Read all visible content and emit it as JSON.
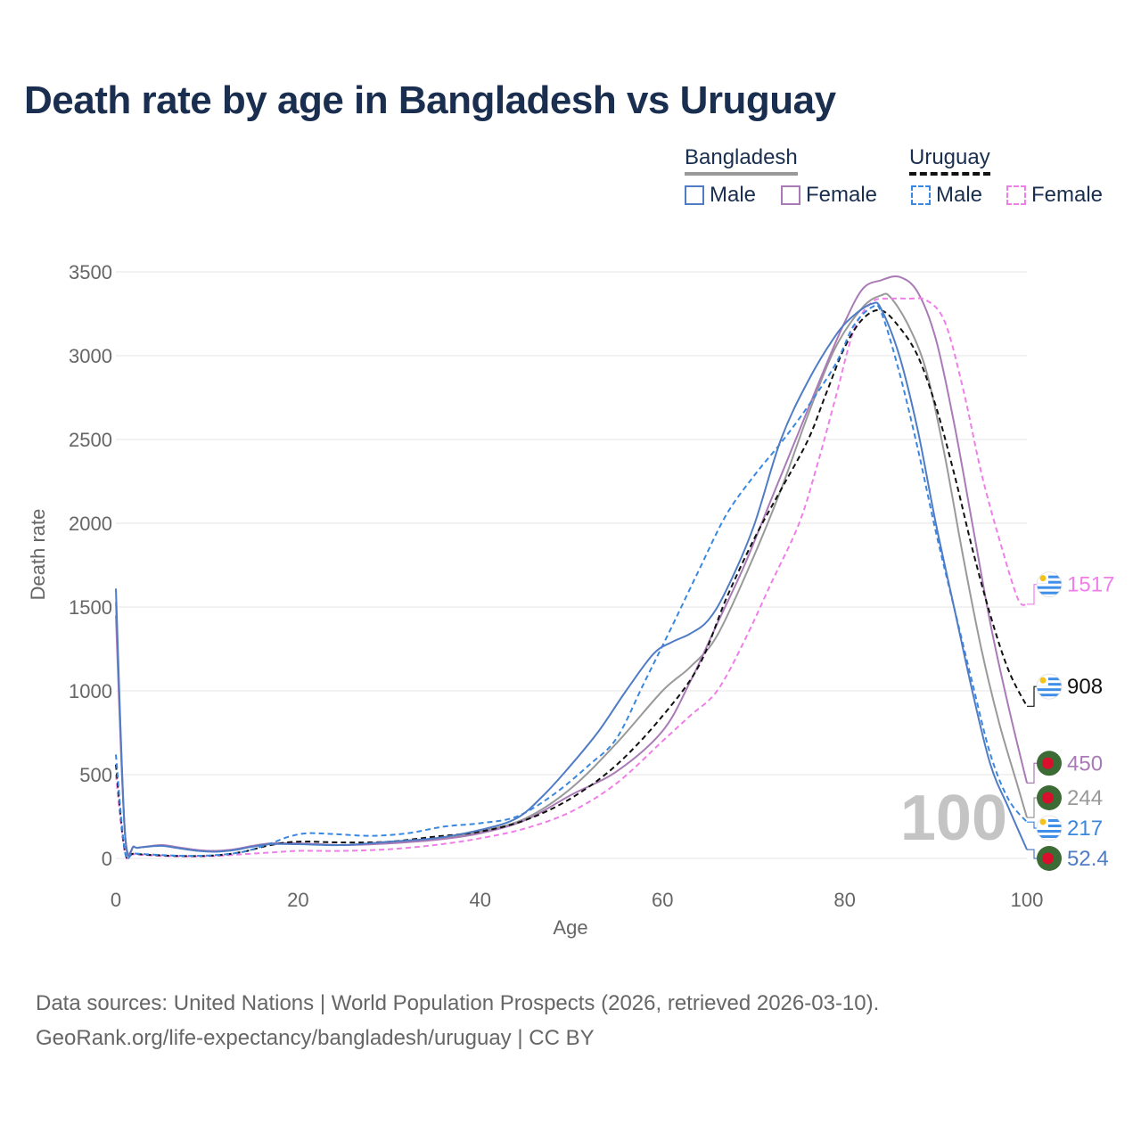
{
  "title": "Death rate by age in Bangladesh vs Uruguay",
  "legend": {
    "groups": [
      {
        "name": "Bangladesh",
        "line_color": "#999999",
        "line_style": "solid"
      },
      {
        "name": "Uruguay",
        "line_color": "#111111",
        "line_style": "dashed"
      }
    ],
    "items": [
      {
        "label": "Male",
        "color": "#4f7cc4",
        "style": "solid"
      },
      {
        "label": "Female",
        "color": "#a97ab6",
        "style": "solid"
      },
      {
        "label": "Male",
        "color": "#3a87e0",
        "style": "dashed"
      },
      {
        "label": "Female",
        "color": "#f07ee8",
        "style": "dashed"
      }
    ]
  },
  "chart_data": {
    "type": "line",
    "title": "Death rate by age in Bangladesh vs Uruguay",
    "xlabel": "Age",
    "ylabel": "Death rate",
    "xlim": [
      0,
      100
    ],
    "ylim": [
      0,
      3500
    ],
    "xticks": [
      0,
      20,
      40,
      60,
      80,
      100
    ],
    "yticks": [
      0,
      500,
      1000,
      1500,
      2000,
      2500,
      3000,
      3500
    ],
    "grid": true,
    "age_watermark": "100",
    "series": [
      {
        "name": "Bangladesh Male",
        "country": "Bangladesh",
        "color": "#4f7cc4",
        "dash": "solid",
        "points": [
          [
            0,
            1610
          ],
          [
            1,
            150
          ],
          [
            2,
            70
          ],
          [
            3,
            68
          ],
          [
            5,
            75
          ],
          [
            7,
            60
          ],
          [
            9,
            45
          ],
          [
            11,
            40
          ],
          [
            13,
            50
          ],
          [
            15,
            70
          ],
          [
            17,
            85
          ],
          [
            20,
            85
          ],
          [
            25,
            80
          ],
          [
            30,
            100
          ],
          [
            35,
            120
          ],
          [
            40,
            170
          ],
          [
            44,
            240
          ],
          [
            47,
            380
          ],
          [
            50,
            560
          ],
          [
            53,
            760
          ],
          [
            56,
            1000
          ],
          [
            59,
            1220
          ],
          [
            61,
            1290
          ],
          [
            63,
            1340
          ],
          [
            65,
            1420
          ],
          [
            67,
            1600
          ],
          [
            70,
            1980
          ],
          [
            73,
            2500
          ],
          [
            76,
            2850
          ],
          [
            79,
            3120
          ],
          [
            81,
            3240
          ],
          [
            83,
            3310
          ],
          [
            84,
            3280
          ],
          [
            86,
            3000
          ],
          [
            88,
            2560
          ],
          [
            90,
            2000
          ],
          [
            92,
            1500
          ],
          [
            94,
            1000
          ],
          [
            96,
            560
          ],
          [
            98,
            300
          ],
          [
            100,
            52.4
          ]
        ],
        "end_label": "52.4"
      },
      {
        "name": "Bangladesh Female",
        "country": "Bangladesh",
        "color": "#a97ab6",
        "dash": "solid",
        "points": [
          [
            0,
            1450
          ],
          [
            1,
            150
          ],
          [
            2,
            70
          ],
          [
            3,
            68
          ],
          [
            5,
            80
          ],
          [
            7,
            65
          ],
          [
            9,
            50
          ],
          [
            11,
            45
          ],
          [
            13,
            55
          ],
          [
            15,
            75
          ],
          [
            17,
            90
          ],
          [
            20,
            90
          ],
          [
            25,
            80
          ],
          [
            30,
            90
          ],
          [
            35,
            110
          ],
          [
            40,
            150
          ],
          [
            45,
            230
          ],
          [
            50,
            380
          ],
          [
            55,
            520
          ],
          [
            60,
            760
          ],
          [
            63,
            1050
          ],
          [
            66,
            1400
          ],
          [
            69,
            1750
          ],
          [
            72,
            2150
          ],
          [
            75,
            2550
          ],
          [
            78,
            2950
          ],
          [
            80,
            3200
          ],
          [
            82,
            3400
          ],
          [
            84,
            3450
          ],
          [
            86,
            3470
          ],
          [
            88,
            3380
          ],
          [
            90,
            3100
          ],
          [
            92,
            2600
          ],
          [
            94,
            2000
          ],
          [
            96,
            1400
          ],
          [
            98,
            900
          ],
          [
            100,
            450
          ]
        ],
        "end_label": "450"
      },
      {
        "name": "Uruguay Male",
        "country": "Uruguay",
        "color": "#3a87e0",
        "dash": "dashed",
        "points": [
          [
            0,
            620
          ],
          [
            1,
            40
          ],
          [
            2,
            30
          ],
          [
            5,
            20
          ],
          [
            8,
            15
          ],
          [
            11,
            20
          ],
          [
            14,
            40
          ],
          [
            17,
            90
          ],
          [
            19,
            130
          ],
          [
            21,
            150
          ],
          [
            24,
            145
          ],
          [
            28,
            135
          ],
          [
            32,
            150
          ],
          [
            36,
            190
          ],
          [
            40,
            210
          ],
          [
            44,
            250
          ],
          [
            48,
            380
          ],
          [
            52,
            560
          ],
          [
            55,
            720
          ],
          [
            58,
            1050
          ],
          [
            61,
            1380
          ],
          [
            64,
            1720
          ],
          [
            67,
            2050
          ],
          [
            70,
            2280
          ],
          [
            73,
            2480
          ],
          [
            76,
            2700
          ],
          [
            79,
            2950
          ],
          [
            81,
            3180
          ],
          [
            83,
            3290
          ],
          [
            84,
            3260
          ],
          [
            86,
            2900
          ],
          [
            88,
            2450
          ],
          [
            90,
            1950
          ],
          [
            92,
            1500
          ],
          [
            94,
            1050
          ],
          [
            96,
            620
          ],
          [
            98,
            350
          ],
          [
            100,
            217
          ]
        ],
        "end_label": "217"
      },
      {
        "name": "Uruguay Female",
        "country": "Uruguay",
        "color": "#f07ee8",
        "dash": "dashed",
        "points": [
          [
            0,
            500
          ],
          [
            1,
            35
          ],
          [
            2,
            25
          ],
          [
            5,
            15
          ],
          [
            8,
            12
          ],
          [
            11,
            15
          ],
          [
            14,
            25
          ],
          [
            17,
            35
          ],
          [
            20,
            45
          ],
          [
            25,
            45
          ],
          [
            30,
            55
          ],
          [
            35,
            80
          ],
          [
            40,
            120
          ],
          [
            45,
            180
          ],
          [
            50,
            280
          ],
          [
            55,
            450
          ],
          [
            60,
            700
          ],
          [
            63,
            850
          ],
          [
            66,
            1000
          ],
          [
            69,
            1300
          ],
          [
            72,
            1650
          ],
          [
            75,
            2000
          ],
          [
            77,
            2350
          ],
          [
            79,
            2750
          ],
          [
            81,
            3150
          ],
          [
            83,
            3320
          ],
          [
            85,
            3340
          ],
          [
            87,
            3340
          ],
          [
            89,
            3330
          ],
          [
            91,
            3200
          ],
          [
            93,
            2800
          ],
          [
            95,
            2300
          ],
          [
            97,
            1900
          ],
          [
            99,
            1550
          ],
          [
            100,
            1517
          ]
        ],
        "end_label": "1517"
      },
      {
        "name": "Bangladesh Total",
        "country": "Bangladesh",
        "color": "#999999",
        "dash": "solid",
        "points": [
          [
            0,
            1530
          ],
          [
            1,
            150
          ],
          [
            2,
            70
          ],
          [
            3,
            68
          ],
          [
            5,
            78
          ],
          [
            7,
            62
          ],
          [
            9,
            48
          ],
          [
            11,
            42
          ],
          [
            13,
            52
          ],
          [
            15,
            72
          ],
          [
            17,
            88
          ],
          [
            20,
            88
          ],
          [
            25,
            80
          ],
          [
            30,
            95
          ],
          [
            35,
            115
          ],
          [
            40,
            160
          ],
          [
            45,
            240
          ],
          [
            50,
            420
          ],
          [
            55,
            690
          ],
          [
            60,
            1000
          ],
          [
            63,
            1140
          ],
          [
            66,
            1330
          ],
          [
            70,
            1800
          ],
          [
            73,
            2200
          ],
          [
            76,
            2650
          ],
          [
            79,
            3050
          ],
          [
            82,
            3290
          ],
          [
            84,
            3360
          ],
          [
            85,
            3350
          ],
          [
            87,
            3180
          ],
          [
            89,
            2900
          ],
          [
            91,
            2400
          ],
          [
            93,
            1800
          ],
          [
            95,
            1250
          ],
          [
            97,
            800
          ],
          [
            99,
            430
          ],
          [
            100,
            244
          ]
        ],
        "end_label": "244"
      },
      {
        "name": "Uruguay Total",
        "country": "Uruguay",
        "color": "#111111",
        "dash": "dashed",
        "points": [
          [
            0,
            560
          ],
          [
            1,
            40
          ],
          [
            2,
            28
          ],
          [
            5,
            18
          ],
          [
            8,
            14
          ],
          [
            11,
            18
          ],
          [
            14,
            40
          ],
          [
            17,
            80
          ],
          [
            20,
            100
          ],
          [
            25,
            95
          ],
          [
            30,
            100
          ],
          [
            35,
            130
          ],
          [
            40,
            160
          ],
          [
            45,
            230
          ],
          [
            50,
            360
          ],
          [
            55,
            560
          ],
          [
            60,
            850
          ],
          [
            64,
            1150
          ],
          [
            67,
            1550
          ],
          [
            70,
            1900
          ],
          [
            73,
            2200
          ],
          [
            76,
            2500
          ],
          [
            78,
            2780
          ],
          [
            80,
            3050
          ],
          [
            82,
            3220
          ],
          [
            84,
            3270
          ],
          [
            86,
            3170
          ],
          [
            88,
            3000
          ],
          [
            90,
            2700
          ],
          [
            92,
            2300
          ],
          [
            94,
            1850
          ],
          [
            96,
            1450
          ],
          [
            98,
            1120
          ],
          [
            100,
            908
          ]
        ],
        "end_label": "908"
      }
    ]
  },
  "source": {
    "line1": "Data sources: United Nations | World Population Prospects (2026, retrieved 2026-03-10).",
    "line2": "GeoRank.org/life-expectancy/bangladesh/uruguay | CC BY"
  }
}
